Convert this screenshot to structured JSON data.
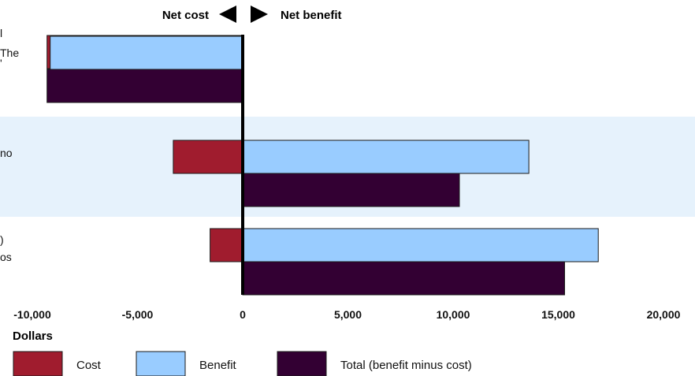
{
  "chart_data": {
    "type": "bar",
    "orientation": "horizontal",
    "direction_labels": {
      "left": "Net cost",
      "right": "Net benefit"
    },
    "xlabel": "Dollars",
    "xlim": [
      -10000,
      20000
    ],
    "xticks": [
      "-10,000",
      "-5,000",
      "0",
      "5,000",
      "10,000",
      "15,000",
      "20,000"
    ],
    "xtick_values": [
      -10000,
      -5000,
      0,
      5000,
      10000,
      15000,
      20000
    ],
    "category_labels": [
      [
        "l",
        "The",
        "'"
      ],
      [
        "no"
      ],
      [
        ")",
        "os"
      ]
    ],
    "shaded_rows": [
      false,
      true,
      false
    ],
    "series": [
      {
        "name": "Cost",
        "color": "#a01c2e",
        "values": [
          -9300,
          -3300,
          -1550
        ]
      },
      {
        "name": "Benefit",
        "color": "#99ccff",
        "values": [
          -9150,
          13600,
          16900
        ]
      },
      {
        "name": "Total (benefit minus cost)",
        "color": "#330033",
        "values": [
          -9300,
          10300,
          15300
        ]
      }
    ]
  }
}
